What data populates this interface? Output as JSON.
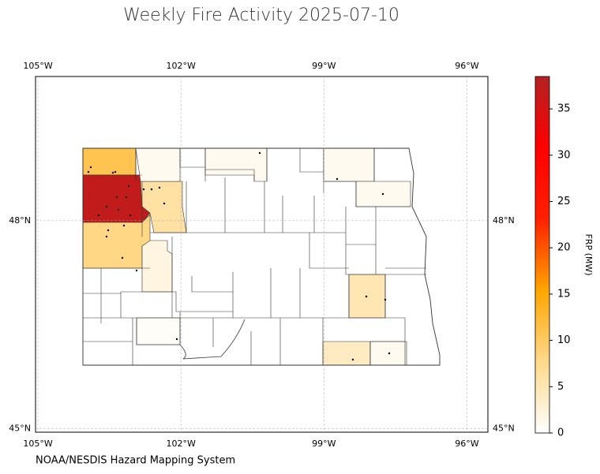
{
  "chart_data": {
    "type": "choropleth",
    "title": "Weekly Fire Activity 2025-07-10",
    "credit": "NOAA/NESDIS Hazard Mapping System",
    "xlim": [
      -105.05,
      -95.56
    ],
    "ylim": [
      44.95,
      50.08
    ],
    "xticks": [
      {
        "value": -105,
        "label": "105°W"
      },
      {
        "value": -102,
        "label": "102°W"
      },
      {
        "value": -99,
        "label": "99°W"
      },
      {
        "value": -96,
        "label": "96°W"
      }
    ],
    "yticks": [
      {
        "value": 48,
        "label": "48°N"
      },
      {
        "value": 45,
        "label": "45°N"
      }
    ],
    "grid": true,
    "county_frp": [
      11,
      37,
      8,
      6,
      1,
      2,
      1,
      1,
      1,
      5,
      4,
      1,
      0.5
    ],
    "colorbar": {
      "label": "FRP (MW)",
      "lim": [
        0,
        38.5
      ],
      "ticks": [
        0,
        5,
        10,
        15,
        20,
        25,
        30,
        35
      ],
      "colors": [
        "#ffffff",
        "#ffd98a",
        "#ffa500",
        "#ff2000",
        "#ff0000",
        "#b22222"
      ]
    }
  }
}
